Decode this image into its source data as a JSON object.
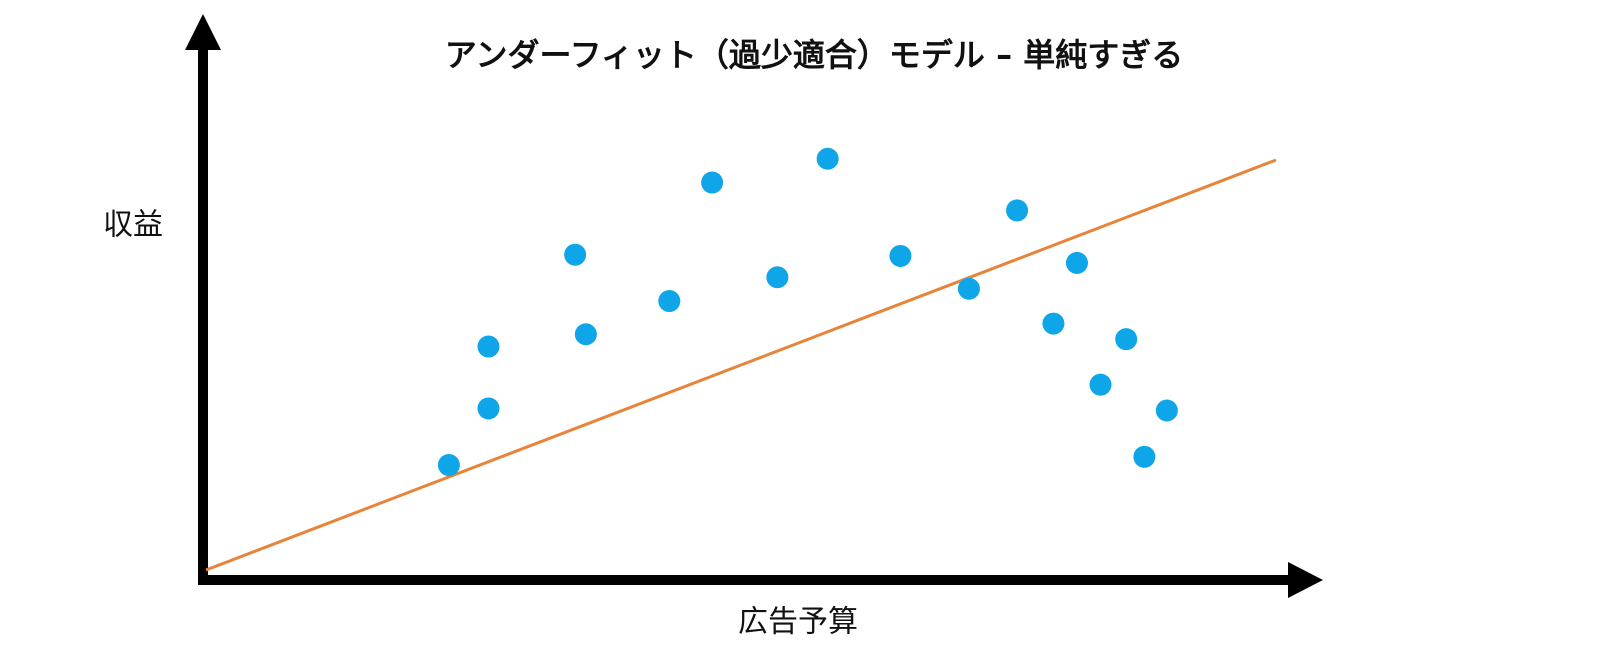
{
  "chart_data": {
    "type": "scatter",
    "title": "アンダーフィット（過少適合）モデル – 単純すぎる",
    "x_label": "広告予算",
    "y_label": "収益",
    "xlim": [
      0,
      100
    ],
    "ylim": [
      0,
      100
    ],
    "series": [
      {
        "color": "#0ea5e9",
        "x": [
          22.7,
          26.4,
          26.4,
          34.5,
          35.5,
          43.3,
          47.3,
          53.4,
          58.1,
          64.9,
          71.3,
          75.8,
          79.2,
          81.4,
          83.6,
          86.0,
          87.7,
          89.8
        ],
        "values": [
          25.6,
          39.4,
          54.5,
          76.9,
          57.5,
          65.6,
          94.5,
          71.4,
          100.3,
          76.6,
          68.6,
          87.7,
          60.1,
          74.9,
          45.2,
          56.3,
          27.6,
          38.9
        ]
      }
    ],
    "fit_line": {
      "color": "#e8833a",
      "x": [
        0,
        100
      ],
      "values": [
        0,
        100
      ]
    }
  }
}
